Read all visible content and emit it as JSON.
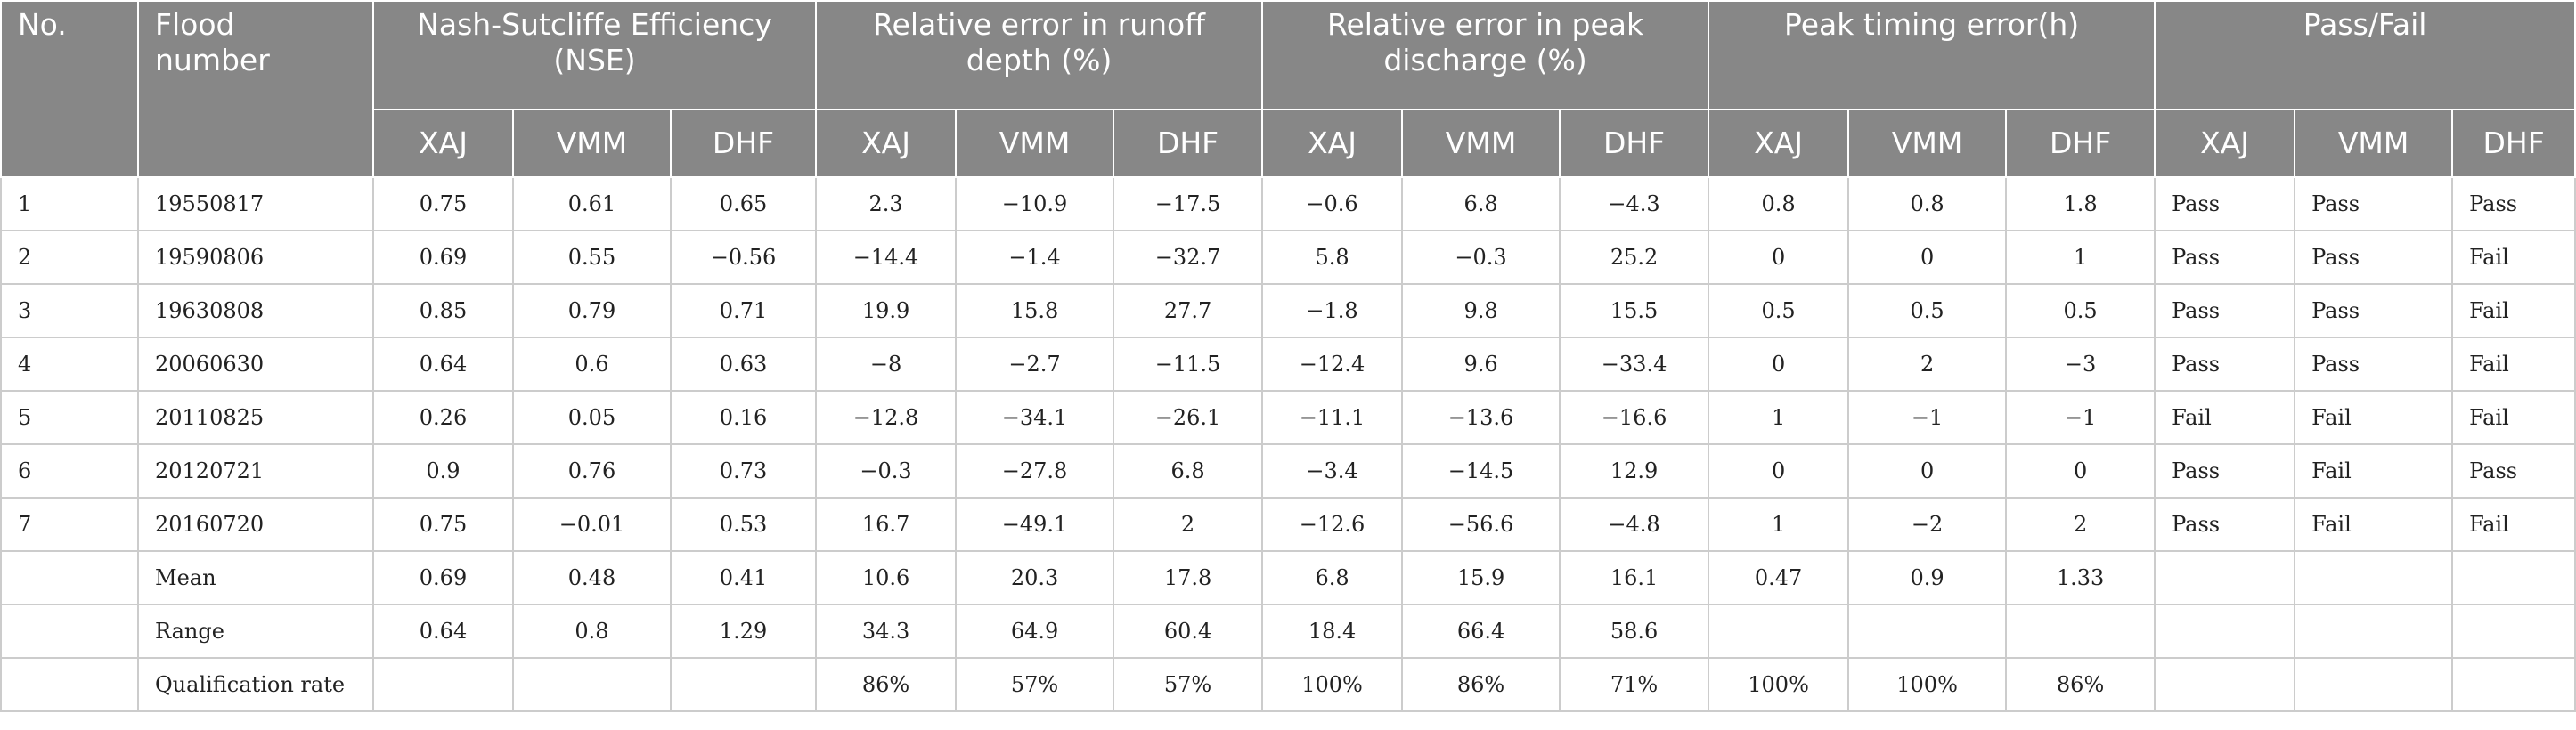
{
  "table": {
    "headers": {
      "no": "No.",
      "flood_number": "Flood number",
      "groups": [
        "Nash-Sutcliffe Efficiency (NSE)",
        "Relative error in runoff depth (%)",
        "Relative error in peak discharge (%)",
        "Peak timing error(h)",
        "Pass/Fail"
      ],
      "models": [
        "XAJ",
        "VMM",
        "DHF"
      ]
    },
    "rows": [
      [
        "1",
        "19550817",
        "0.75",
        "0.61",
        "0.65",
        "2.3",
        "−10.9",
        "−17.5",
        "−0.6",
        "6.8",
        "−4.3",
        "0.8",
        "0.8",
        "1.8",
        "Pass",
        "Pass",
        "Pass"
      ],
      [
        "2",
        "19590806",
        "0.69",
        "0.55",
        "−0.56",
        "−14.4",
        "−1.4",
        "−32.7",
        "5.8",
        "−0.3",
        "25.2",
        "0",
        "0",
        "1",
        "Pass",
        "Pass",
        "Fail"
      ],
      [
        "3",
        "19630808",
        "0.85",
        "0.79",
        "0.71",
        "19.9",
        "15.8",
        "27.7",
        "−1.8",
        "9.8",
        "15.5",
        "0.5",
        "0.5",
        "0.5",
        "Pass",
        "Pass",
        "Fail"
      ],
      [
        "4",
        "20060630",
        "0.64",
        "0.6",
        "0.63",
        "−8",
        "−2.7",
        "−11.5",
        "−12.4",
        "9.6",
        "−33.4",
        "0",
        "2",
        "−3",
        "Pass",
        "Pass",
        "Fail"
      ],
      [
        "5",
        "20110825",
        "0.26",
        "0.05",
        "0.16",
        "−12.8",
        "−34.1",
        "−26.1",
        "−11.1",
        "−13.6",
        "−16.6",
        "1",
        "−1",
        "−1",
        "Fail",
        "Fail",
        "Fail"
      ],
      [
        "6",
        "20120721",
        "0.9",
        "0.76",
        "0.73",
        "−0.3",
        "−27.8",
        "6.8",
        "−3.4",
        "−14.5",
        "12.9",
        "0",
        "0",
        "0",
        "Pass",
        "Fail",
        "Pass"
      ],
      [
        "7",
        "20160720",
        "0.75",
        "−0.01",
        "0.53",
        "16.7",
        "−49.1",
        "2",
        "−12.6",
        "−56.6",
        "−4.8",
        "1",
        "−2",
        "2",
        "Pass",
        "Fail",
        "Fail"
      ],
      [
        "",
        "Mean",
        "0.69",
        "0.48",
        "0.41",
        "10.6",
        "20.3",
        "17.8",
        "6.8",
        "15.9",
        "16.1",
        "0.47",
        "0.9",
        "1.33",
        "",
        "",
        ""
      ],
      [
        "",
        "Range",
        "0.64",
        "0.8",
        "1.29",
        "34.3",
        "64.9",
        "60.4",
        "18.4",
        "66.4",
        "58.6",
        "",
        "",
        "",
        "",
        "",
        ""
      ],
      [
        "",
        "Qualification rate",
        "",
        "",
        "",
        "86%",
        "57%",
        "57%",
        "100%",
        "86%",
        "71%",
        "100%",
        "100%",
        "86%",
        "",
        "",
        ""
      ]
    ]
  }
}
